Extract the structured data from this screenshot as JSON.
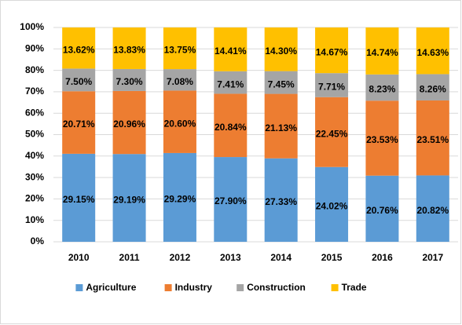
{
  "chart_data": {
    "type": "bar",
    "stacking": "percent",
    "categories": [
      "2010",
      "2011",
      "2012",
      "2013",
      "2014",
      "2015",
      "2016",
      "2017"
    ],
    "series": [
      {
        "name": "Agriculture",
        "color": "#5b9bd5",
        "values": [
          29.15,
          29.19,
          29.29,
          27.9,
          27.33,
          24.02,
          20.76,
          20.82
        ],
        "value_labels": [
          "29.15%",
          "29.19%",
          "29.29%",
          "27.90%",
          "27.33%",
          "24.02%",
          "20.76%",
          "20.82%"
        ]
      },
      {
        "name": "Industry",
        "color": "#ed7d31",
        "values": [
          20.71,
          20.96,
          20.6,
          20.84,
          21.13,
          22.45,
          23.53,
          23.51
        ],
        "value_labels": [
          "20.71%",
          "20.96%",
          "20.60%",
          "20.84%",
          "21.13%",
          "22.45%",
          "23.53%",
          "23.51%"
        ]
      },
      {
        "name": "Construction",
        "color": "#a5a5a5",
        "values": [
          7.5,
          7.3,
          7.08,
          7.41,
          7.45,
          7.71,
          8.23,
          8.26
        ],
        "value_labels": [
          "7.50%",
          "7.30%",
          "7.08%",
          "7.41%",
          "7.45%",
          "7.71%",
          "8.23%",
          "8.26%"
        ]
      },
      {
        "name": "Trade",
        "color": "#ffc000",
        "values": [
          13.62,
          13.83,
          13.75,
          14.41,
          14.3,
          14.67,
          14.74,
          14.63
        ],
        "value_labels": [
          "13.62%",
          "13.83%",
          "13.75%",
          "14.41%",
          "14.30%",
          "14.67%",
          "14.74%",
          "14.63%"
        ]
      }
    ],
    "ylim": [
      0,
      100
    ],
    "yticks": [
      {
        "value": 0,
        "label": "0%"
      },
      {
        "value": 10,
        "label": "10%"
      },
      {
        "value": 20,
        "label": "20%"
      },
      {
        "value": 30,
        "label": "30%"
      },
      {
        "value": 40,
        "label": "40%"
      },
      {
        "value": 50,
        "label": "50%"
      },
      {
        "value": 60,
        "label": "60%"
      },
      {
        "value": 70,
        "label": "70%"
      },
      {
        "value": 80,
        "label": "80%"
      },
      {
        "value": 90,
        "label": "90%"
      },
      {
        "value": 100,
        "label": "100%"
      }
    ],
    "grid": true,
    "legend": "bottom"
  }
}
